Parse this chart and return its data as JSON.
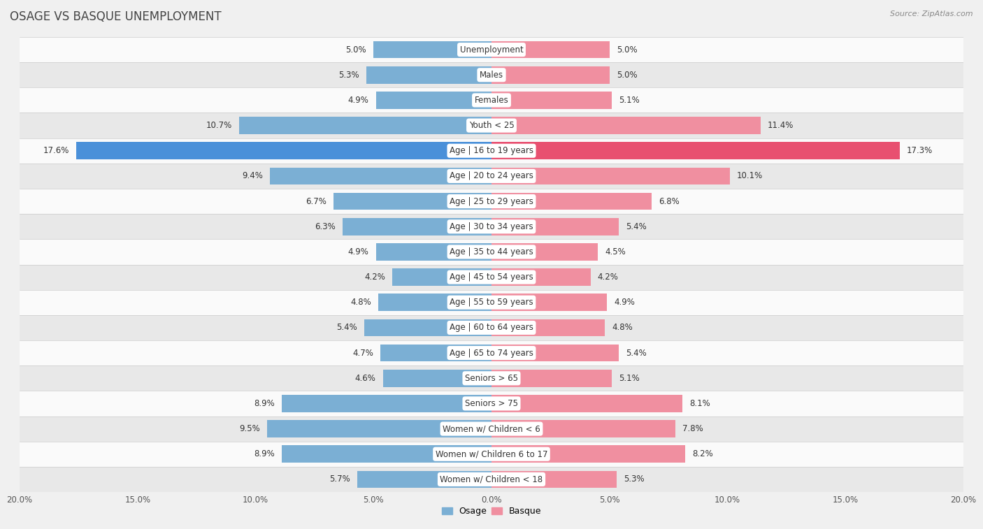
{
  "title": "OSAGE VS BASQUE UNEMPLOYMENT",
  "source": "Source: ZipAtlas.com",
  "categories": [
    "Unemployment",
    "Males",
    "Females",
    "Youth < 25",
    "Age | 16 to 19 years",
    "Age | 20 to 24 years",
    "Age | 25 to 29 years",
    "Age | 30 to 34 years",
    "Age | 35 to 44 years",
    "Age | 45 to 54 years",
    "Age | 55 to 59 years",
    "Age | 60 to 64 years",
    "Age | 65 to 74 years",
    "Seniors > 65",
    "Seniors > 75",
    "Women w/ Children < 6",
    "Women w/ Children 6 to 17",
    "Women w/ Children < 18"
  ],
  "osage": [
    5.0,
    5.3,
    4.9,
    10.7,
    17.6,
    9.4,
    6.7,
    6.3,
    4.9,
    4.2,
    4.8,
    5.4,
    4.7,
    4.6,
    8.9,
    9.5,
    8.9,
    5.7
  ],
  "basque": [
    5.0,
    5.0,
    5.1,
    11.4,
    17.3,
    10.1,
    6.8,
    5.4,
    4.5,
    4.2,
    4.9,
    4.8,
    5.4,
    5.1,
    8.1,
    7.8,
    8.2,
    5.3
  ],
  "osage_color": "#7bafd4",
  "basque_color": "#f08fa0",
  "osage_highlight_color": "#4a90d9",
  "basque_highlight_color": "#e85070",
  "xlim": 20.0,
  "background_color": "#f0f0f0",
  "row_bg_light": "#fafafa",
  "row_bg_dark": "#e8e8e8",
  "label_bg": "#ffffff",
  "bar_height": 0.68,
  "label_fontsize": 8.5,
  "value_fontsize": 8.5
}
